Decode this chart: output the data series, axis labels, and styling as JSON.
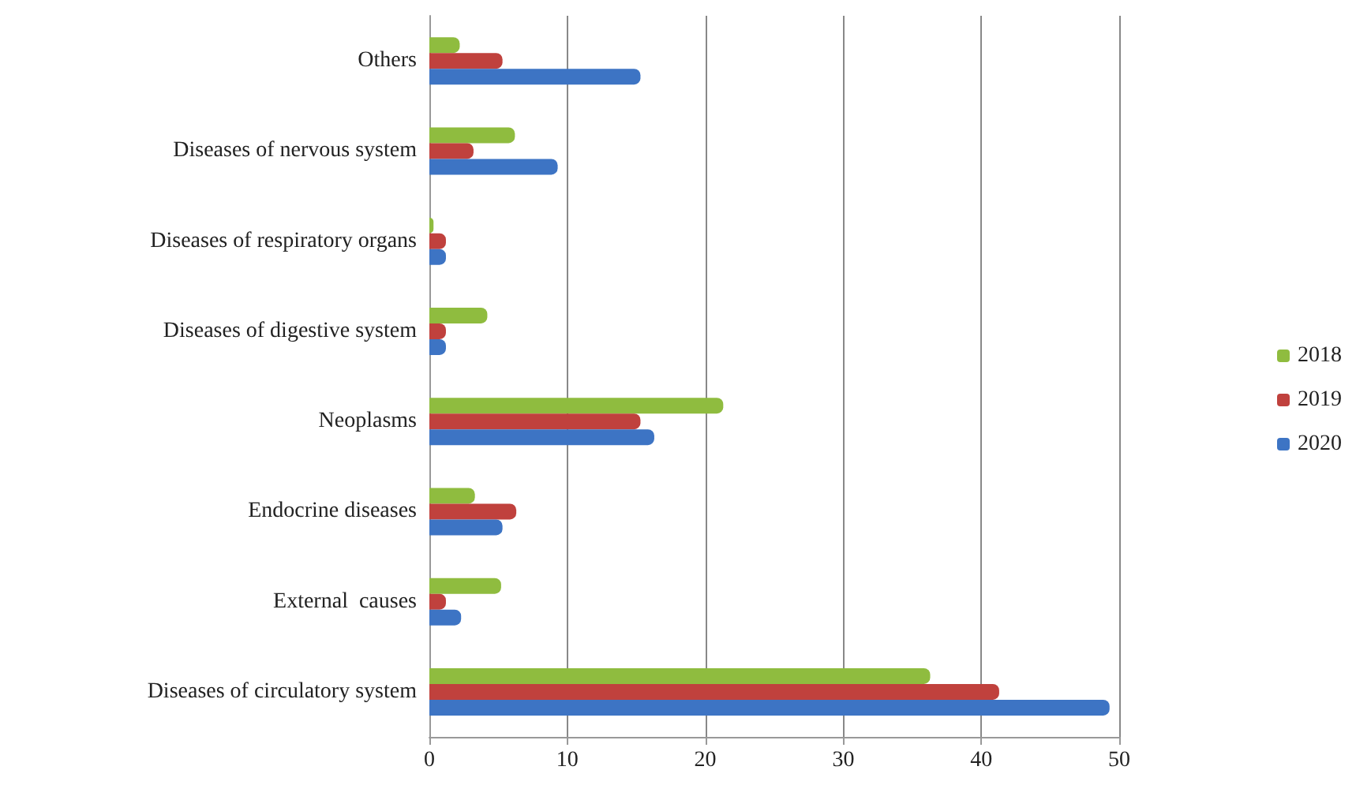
{
  "chart_data": {
    "type": "bar",
    "orientation": "horizontal",
    "categories": [
      "Others",
      "Diseases of nervous system",
      "Diseases of respiratory organs",
      "Diseases of digestive system",
      "Neoplasms",
      "Endocrine diseases",
      "External  causes",
      "Diseases of circulatory system"
    ],
    "series": [
      {
        "name": "2018",
        "color": "#8fbc3f",
        "values": [
          2.2,
          6.2,
          0.3,
          4.2,
          21.3,
          3.3,
          5.2,
          36.3
        ]
      },
      {
        "name": "2019",
        "color": "#c0413d",
        "values": [
          5.3,
          3.2,
          1.2,
          1.2,
          15.3,
          6.3,
          1.2,
          41.3
        ]
      },
      {
        "name": "2020",
        "color": "#3d74c4",
        "values": [
          15.3,
          9.3,
          1.2,
          1.2,
          16.3,
          5.3,
          2.3,
          49.3
        ]
      }
    ],
    "xlim": [
      0,
      50
    ],
    "xticks": [
      0,
      10,
      20,
      30,
      40,
      50
    ],
    "grid": "x",
    "legend": "right"
  }
}
